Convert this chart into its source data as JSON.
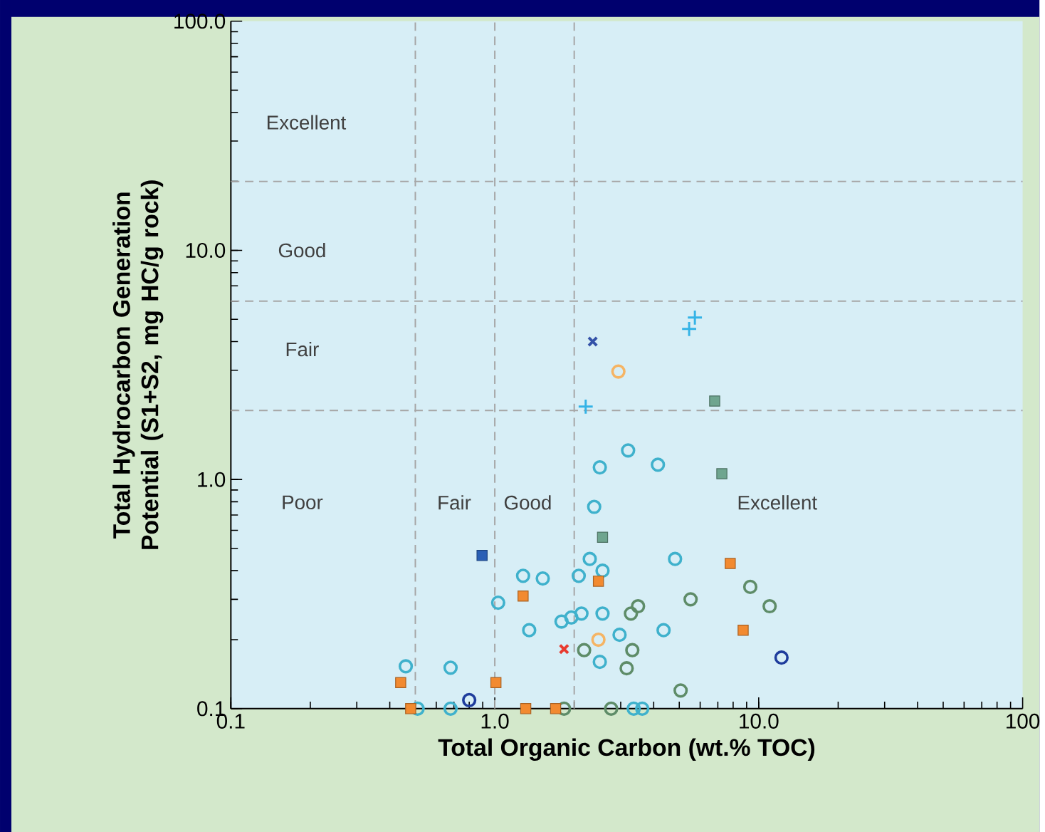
{
  "chart_data": {
    "type": "scatter",
    "xlabel": "Total Organic Carbon (wt.% TOC)",
    "ylabel": "Total Hydrocarbon Generation Potential (S1+S2, mg HC/g rock)",
    "log": "xy",
    "xlim": [
      0.1,
      100
    ],
    "ylim": [
      0.1,
      100
    ],
    "xticks": [
      0.1,
      {
        "value": 1,
        "label": "1.0"
      },
      {
        "value": 10,
        "label": "10.0"
      },
      100
    ],
    "yticks": [
      0.1,
      {
        "value": 1,
        "label": "1.0"
      },
      {
        "value": 10,
        "label": "10.0"
      },
      {
        "value": 100,
        "label": "100.0"
      }
    ],
    "grid": false,
    "ref_lines": [
      {
        "axis": "x",
        "value": 0.5,
        "color": "#a6a6a6",
        "line_style": "dashed"
      },
      {
        "axis": "x",
        "value": 1,
        "color": "#a6a6a6",
        "line_style": "dashed"
      },
      {
        "axis": "x",
        "value": 2,
        "color": "#a6a6a6",
        "line_style": "dashed"
      },
      {
        "axis": "y",
        "value": 2,
        "color": "#a6a6a6",
        "line_style": "dashed"
      },
      {
        "axis": "y",
        "value": 6,
        "color": "#a6a6a6",
        "line_style": "dashed"
      },
      {
        "axis": "y",
        "value": 20,
        "color": "#a6a6a6",
        "line_style": "dashed"
      }
    ],
    "annotations": [
      "Excellent",
      "Good",
      "Fair",
      "Poor",
      "Fair",
      "Good",
      "Excellent"
    ],
    "series": [
      {
        "color": "#3fb1cc",
        "marker": "circle",
        "x": [
          0.46,
          0.68,
          0.51,
          0.68,
          1.03,
          1.28,
          1.52,
          1.35,
          1.79,
          1.95,
          2.13,
          2.08,
          2.29,
          2.56,
          2.38,
          2.56,
          2.97,
          2.5,
          3.36,
          3.62,
          4.82,
          4.36,
          2.5,
          3.2,
          4.15
        ],
        "values": [
          0.153,
          0.151,
          0.1,
          0.1,
          0.29,
          0.38,
          0.37,
          0.22,
          0.24,
          0.25,
          0.26,
          0.38,
          0.45,
          0.4,
          0.76,
          0.26,
          0.21,
          0.16,
          0.1,
          0.1,
          0.45,
          0.22,
          1.13,
          1.34,
          1.16
        ]
      },
      {
        "color": "#5e8c68",
        "marker": "circle",
        "x": [
          1.83,
          2.18,
          2.76,
          3.28,
          3.49,
          3.32,
          3.16,
          5.06,
          5.52,
          9.29,
          11.0
        ],
        "values": [
          0.1,
          0.18,
          0.1,
          0.26,
          0.28,
          0.18,
          0.15,
          0.12,
          0.3,
          0.34,
          0.28
        ]
      },
      {
        "color": "#f28a30",
        "marker": "square",
        "x": [
          0.44,
          0.48,
          1.01,
          1.28,
          1.31,
          1.7,
          2.47,
          7.8,
          8.73
        ],
        "values": [
          0.13,
          0.1,
          0.13,
          0.31,
          0.1,
          0.1,
          0.36,
          0.43,
          0.22
        ]
      },
      {
        "color": "#6fa58f",
        "marker": "square",
        "x": [
          2.56,
          6.81,
          7.25
        ],
        "values": [
          0.56,
          2.2,
          1.06
        ]
      },
      {
        "color": "#2a5fb5",
        "marker": "square",
        "x": [
          0.895
        ],
        "values": [
          0.466
        ]
      },
      {
        "color": "#1e3c9c",
        "marker": "circle",
        "x": [
          0.8,
          12.2
        ],
        "values": [
          0.109,
          0.167
        ]
      },
      {
        "color": "#f5b464",
        "marker": "circle",
        "x": [
          2.94,
          2.47
        ],
        "values": [
          2.96,
          0.2
        ]
      },
      {
        "color": "#34b3e6",
        "marker": "plus",
        "x": [
          2.21,
          5.45,
          5.73
        ],
        "values": [
          2.08,
          4.54,
          5.09
        ]
      },
      {
        "color": "#3452a8",
        "marker": "cross",
        "x": [
          2.35
        ],
        "values": [
          4.0
        ]
      },
      {
        "color": "#e83a2e",
        "marker": "cross",
        "x": [
          1.83
        ],
        "values": [
          0.182
        ]
      }
    ]
  }
}
